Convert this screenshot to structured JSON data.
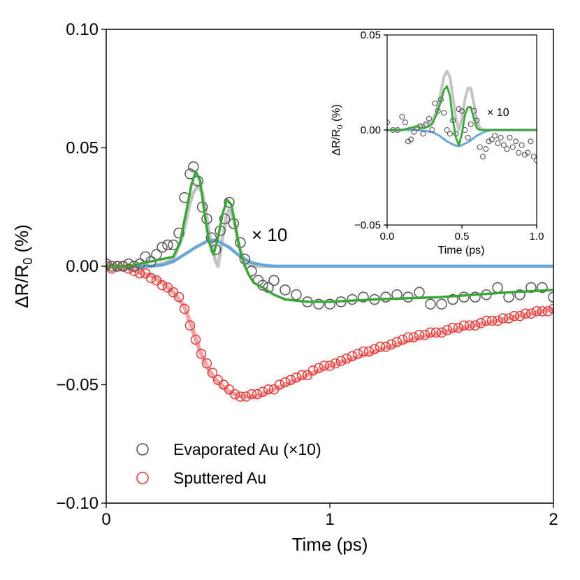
{
  "colors": {
    "evaporated_marker": "#555555",
    "sputtered_marker": "#e53935",
    "gray_fit": "#c4c4c4",
    "green_fit": "#3aa63a",
    "blue_fit": "#6aa6d6",
    "red_fit": "#ef9a9a"
  },
  "chart_data": [
    {
      "id": "main",
      "type": "scatter",
      "title": "",
      "xlabel": "Time (ps)",
      "ylabel_base": "ΔR/R",
      "ylabel_sub": "0",
      "ylabel_unit": " (%)",
      "xlim": [
        0,
        2
      ],
      "ylim": [
        -0.1,
        0.1
      ],
      "xticks": [
        0,
        1,
        2
      ],
      "xtick_labels": [
        "0",
        "1",
        "2"
      ],
      "yticks": [
        -0.1,
        -0.05,
        0.0,
        0.05,
        0.1
      ],
      "ytick_labels": [
        "−0.10",
        "−0.05",
        "0.00",
        "0.05",
        "0.10"
      ],
      "grid": false,
      "legend_position": "bottom-left",
      "legend": [
        "Evaporated Au (×10)",
        "Sputtered Au"
      ],
      "annotation": "× 10",
      "series": [
        {
          "name": "Evaporated Au (×10)",
          "kind": "markers",
          "x": [
            0.0,
            0.025,
            0.05,
            0.075,
            0.1,
            0.125,
            0.15,
            0.175,
            0.2,
            0.225,
            0.25,
            0.275,
            0.3,
            0.325,
            0.35,
            0.375,
            0.39,
            0.41,
            0.43,
            0.45,
            0.47,
            0.49,
            0.51,
            0.53,
            0.55,
            0.57,
            0.6,
            0.62,
            0.65,
            0.68,
            0.7,
            0.725,
            0.75,
            0.8,
            0.85,
            0.9,
            0.95,
            1.0,
            1.05,
            1.1,
            1.15,
            1.2,
            1.25,
            1.3,
            1.35,
            1.4,
            1.45,
            1.5,
            1.55,
            1.6,
            1.65,
            1.7,
            1.75,
            1.8,
            1.85,
            1.9,
            1.95,
            2.0
          ],
          "y": [
            0.001,
            0.0,
            0.0,
            0.0,
            0.001,
            0.0,
            0.001,
            0.004,
            0.002,
            0.005,
            0.008,
            0.009,
            0.009,
            0.014,
            0.029,
            0.039,
            0.042,
            0.036,
            0.025,
            0.02,
            0.012,
            0.007,
            0.015,
            0.02,
            0.027,
            0.018,
            0.01,
            0.003,
            -0.002,
            -0.006,
            -0.008,
            -0.009,
            -0.006,
            -0.01,
            -0.012,
            -0.015,
            -0.016,
            -0.016,
            -0.015,
            -0.014,
            -0.013,
            -0.014,
            -0.013,
            -0.012,
            -0.013,
            -0.011,
            -0.016,
            -0.016,
            -0.014,
            -0.013,
            -0.013,
            -0.012,
            -0.009,
            -0.013,
            -0.012,
            -0.009,
            -0.009,
            -0.013
          ]
        },
        {
          "name": "Sputtered Au",
          "kind": "markers",
          "x": [
            0.0,
            0.025,
            0.05,
            0.075,
            0.1,
            0.125,
            0.15,
            0.175,
            0.2,
            0.225,
            0.25,
            0.275,
            0.3,
            0.325,
            0.35,
            0.375,
            0.4,
            0.425,
            0.45,
            0.475,
            0.5,
            0.525,
            0.55,
            0.575,
            0.6,
            0.625,
            0.65,
            0.675,
            0.7,
            0.725,
            0.75,
            0.775,
            0.8,
            0.825,
            0.85,
            0.875,
            0.9,
            0.925,
            0.95,
            0.975,
            1.0,
            1.025,
            1.05,
            1.075,
            1.1,
            1.125,
            1.15,
            1.175,
            1.2,
            1.225,
            1.25,
            1.275,
            1.3,
            1.325,
            1.35,
            1.375,
            1.4,
            1.425,
            1.45,
            1.475,
            1.5,
            1.525,
            1.55,
            1.575,
            1.6,
            1.625,
            1.65,
            1.675,
            1.7,
            1.725,
            1.75,
            1.775,
            1.8,
            1.825,
            1.85,
            1.875,
            1.9,
            1.925,
            1.95,
            1.975,
            2.0
          ],
          "y": [
            0.0,
            -0.001,
            0.0,
            0.0,
            -0.001,
            -0.002,
            -0.003,
            -0.003,
            -0.005,
            -0.006,
            -0.008,
            -0.009,
            -0.011,
            -0.013,
            -0.018,
            -0.025,
            -0.031,
            -0.037,
            -0.041,
            -0.045,
            -0.048,
            -0.05,
            -0.052,
            -0.054,
            -0.055,
            -0.055,
            -0.054,
            -0.054,
            -0.053,
            -0.052,
            -0.052,
            -0.05,
            -0.049,
            -0.048,
            -0.047,
            -0.046,
            -0.046,
            -0.044,
            -0.043,
            -0.042,
            -0.042,
            -0.041,
            -0.04,
            -0.039,
            -0.038,
            -0.037,
            -0.036,
            -0.036,
            -0.035,
            -0.034,
            -0.034,
            -0.033,
            -0.032,
            -0.031,
            -0.03,
            -0.03,
            -0.029,
            -0.029,
            -0.028,
            -0.028,
            -0.028,
            -0.027,
            -0.026,
            -0.026,
            -0.025,
            -0.025,
            -0.025,
            -0.024,
            -0.023,
            -0.023,
            -0.023,
            -0.022,
            -0.022,
            -0.021,
            -0.021,
            -0.02,
            -0.02,
            -0.019,
            -0.019,
            -0.019,
            -0.018
          ]
        },
        {
          "name": "gray fit",
          "kind": "line",
          "x": [
            0.0,
            0.1,
            0.2,
            0.25,
            0.3,
            0.34,
            0.37,
            0.39,
            0.41,
            0.43,
            0.45,
            0.47,
            0.49,
            0.5,
            0.52,
            0.54,
            0.55,
            0.57,
            0.59,
            0.61,
            0.63,
            0.66,
            0.7,
            0.8,
            1.0,
            1.5,
            2.0
          ],
          "y": [
            0.0,
            0.0,
            0.0,
            0.001,
            0.003,
            0.012,
            0.025,
            0.031,
            0.034,
            0.031,
            0.02,
            0.009,
            0.002,
            0.0,
            0.012,
            0.022,
            0.024,
            0.02,
            0.01,
            0.004,
            0.001,
            0.0,
            0.0,
            0.0,
            0.0,
            0.0,
            0.0
          ]
        },
        {
          "name": "blue fit",
          "kind": "line",
          "x": [
            0.0,
            0.2,
            0.25,
            0.3,
            0.35,
            0.4,
            0.45,
            0.48,
            0.5,
            0.55,
            0.6,
            0.65,
            0.7,
            0.75,
            0.8,
            1.0,
            1.5,
            2.0
          ],
          "y": [
            0.0,
            0.0,
            0.0005,
            0.002,
            0.005,
            0.008,
            0.0105,
            0.011,
            0.0105,
            0.008,
            0.004,
            0.0015,
            0.0005,
            0.0,
            0.0,
            0.0,
            0.0,
            0.0
          ]
        },
        {
          "name": "green fit",
          "kind": "line",
          "x": [
            0.0,
            0.1,
            0.15,
            0.2,
            0.25,
            0.3,
            0.33,
            0.36,
            0.38,
            0.4,
            0.42,
            0.44,
            0.46,
            0.48,
            0.5,
            0.52,
            0.54,
            0.56,
            0.58,
            0.6,
            0.62,
            0.64,
            0.66,
            0.7,
            0.75,
            0.8,
            0.9,
            1.0,
            1.2,
            1.5,
            1.8,
            2.0
          ],
          "y": [
            0.0,
            0.0,
            0.001,
            0.002,
            0.003,
            0.004,
            0.01,
            0.024,
            0.034,
            0.04,
            0.036,
            0.022,
            0.01,
            0.005,
            0.012,
            0.022,
            0.028,
            0.026,
            0.016,
            0.006,
            0.0,
            -0.004,
            -0.007,
            -0.009,
            -0.012,
            -0.014,
            -0.015,
            -0.015,
            -0.014,
            -0.013,
            -0.011,
            -0.01
          ]
        },
        {
          "name": "red fit",
          "kind": "line",
          "x": [
            0.0,
            0.1,
            0.2,
            0.25,
            0.3,
            0.35,
            0.38,
            0.42,
            0.46,
            0.5,
            0.55,
            0.6,
            0.65,
            0.7,
            0.8,
            0.9,
            1.0,
            1.2,
            1.4,
            1.6,
            1.8,
            2.0
          ],
          "y": [
            0.0,
            -0.001,
            -0.004,
            -0.007,
            -0.011,
            -0.017,
            -0.025,
            -0.036,
            -0.044,
            -0.049,
            -0.053,
            -0.055,
            -0.055,
            -0.054,
            -0.05,
            -0.046,
            -0.042,
            -0.036,
            -0.03,
            -0.026,
            -0.022,
            -0.018
          ]
        }
      ]
    },
    {
      "id": "inset",
      "type": "scatter",
      "title": "",
      "xlabel": "Time (ps)",
      "ylabel_base": "ΔR/R",
      "ylabel_sub": "0",
      "ylabel_unit": " (%)",
      "xlim": [
        0,
        1
      ],
      "ylim": [
        -0.05,
        0.05
      ],
      "xticks": [
        0,
        0.5,
        1.0
      ],
      "xtick_labels": [
        "0.0",
        "0.5",
        "1.0"
      ],
      "yticks": [
        -0.05,
        0.0,
        0.05
      ],
      "ytick_labels": [
        "−0.05",
        "0.00",
        "0.05"
      ],
      "grid": false,
      "annotation": "× 10",
      "series": [
        {
          "name": "Evaporated Au markers",
          "kind": "markers",
          "x": [
            0.0,
            0.04,
            0.07,
            0.1,
            0.12,
            0.14,
            0.16,
            0.18,
            0.2,
            0.22,
            0.24,
            0.26,
            0.28,
            0.3,
            0.32,
            0.34,
            0.36,
            0.38,
            0.4,
            0.42,
            0.44,
            0.46,
            0.48,
            0.5,
            0.52,
            0.54,
            0.56,
            0.58,
            0.6,
            0.62,
            0.64,
            0.66,
            0.68,
            0.7,
            0.72,
            0.74,
            0.76,
            0.78,
            0.8,
            0.82,
            0.84,
            0.86,
            0.88,
            0.9,
            0.92,
            0.94,
            0.96,
            0.98,
            1.0
          ],
          "y": [
            0.004,
            0.0,
            0.0,
            0.007,
            0.004,
            -0.006,
            -0.005,
            -0.001,
            0.001,
            0.002,
            -0.002,
            0.003,
            0.006,
            0.0,
            0.014,
            0.01,
            0.016,
            0.009,
            0.0,
            -0.002,
            0.005,
            -0.002,
            0.011,
            0.01,
            0.0,
            -0.004,
            0.003,
            0.01,
            0.005,
            -0.009,
            -0.014,
            -0.01,
            -0.006,
            -0.005,
            -0.003,
            -0.007,
            -0.004,
            -0.008,
            -0.01,
            -0.004,
            -0.009,
            -0.006,
            -0.012,
            -0.008,
            -0.013,
            -0.012,
            -0.006,
            -0.014,
            -0.016
          ]
        },
        {
          "name": "gray fit",
          "kind": "line",
          "x": [
            0.0,
            0.1,
            0.15,
            0.2,
            0.25,
            0.3,
            0.33,
            0.36,
            0.38,
            0.4,
            0.42,
            0.44,
            0.46,
            0.48,
            0.5,
            0.52,
            0.54,
            0.56,
            0.58,
            0.6,
            0.62,
            0.65,
            0.7,
            0.8,
            1.0
          ],
          "y": [
            0.0,
            0.0,
            0.0005,
            0.002,
            0.003,
            0.004,
            0.01,
            0.02,
            0.028,
            0.031,
            0.028,
            0.017,
            0.006,
            0.0,
            0.006,
            0.016,
            0.022,
            0.022,
            0.014,
            0.005,
            0.001,
            0.0,
            0.0,
            0.0,
            0.0
          ]
        },
        {
          "name": "blue fit",
          "kind": "line",
          "x": [
            0.0,
            0.2,
            0.3,
            0.35,
            0.4,
            0.45,
            0.48,
            0.5,
            0.55,
            0.6,
            0.65,
            0.7,
            0.75,
            0.8,
            1.0
          ],
          "y": [
            0.0,
            0.0,
            -0.001,
            -0.003,
            -0.006,
            -0.008,
            -0.0085,
            -0.008,
            -0.006,
            -0.003,
            -0.001,
            0.0,
            0.0,
            0.0,
            0.0
          ]
        },
        {
          "name": "green fit",
          "kind": "line",
          "x": [
            0.0,
            0.1,
            0.15,
            0.18,
            0.2,
            0.22,
            0.25,
            0.28,
            0.3,
            0.33,
            0.36,
            0.38,
            0.4,
            0.42,
            0.44,
            0.46,
            0.48,
            0.5,
            0.52,
            0.54,
            0.56,
            0.58,
            0.6,
            0.62,
            0.65,
            0.7,
            0.8,
            1.0
          ],
          "y": [
            0.0,
            0.0,
            0.001,
            0.0015,
            0.002,
            0.001,
            0.001,
            0.002,
            0.003,
            0.008,
            0.015,
            0.021,
            0.023,
            0.018,
            0.005,
            -0.004,
            -0.008,
            -0.002,
            0.008,
            0.012,
            0.012,
            0.006,
            0.001,
            0.0,
            0.0,
            0.0,
            0.0,
            0.0
          ]
        }
      ]
    }
  ]
}
